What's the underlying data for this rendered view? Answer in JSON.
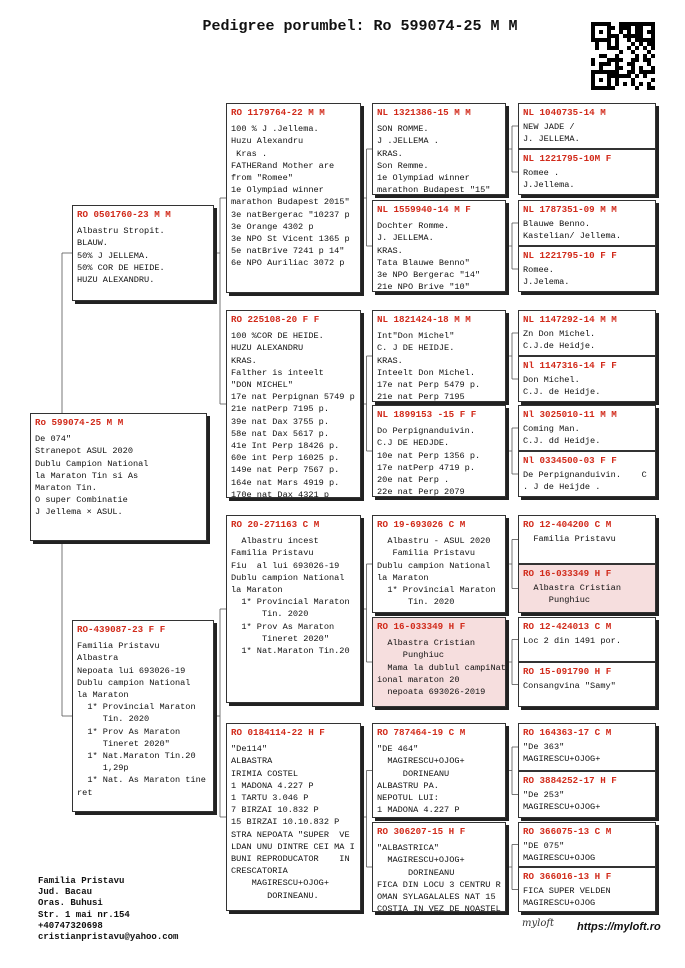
{
  "title": "Pedigree porumbel: Ro 599074-25 M M",
  "generations": [
    [
      {
        "id": "Ro 599074-25 M M",
        "lines": [
          "De 074\"",
          "Stranepot ASUL 2020",
          "Dublu Campion National",
          "la Maraton Tin si As",
          "Maraton Tin.",
          "O super Combinatie",
          "J Jellema × ASUL."
        ]
      }
    ],
    [
      {
        "id": "RO 0501760-23 M M",
        "lines": [
          "Albastru Stropit.",
          "BLAUW.",
          "50% J JELLEMA.",
          "50% COR DE HEIDE.",
          "HUZU ALEXANDRU."
        ]
      },
      {
        "id": "RO-439087-23 F F",
        "lines": [
          "Familia Pristavu",
          "Albastra",
          "Nepoata lui 693026-19",
          "Dublu campion National",
          "la Maraton",
          "  1* Provincial Maraton",
          "     Tin. 2020",
          "  1* Prov As Maraton",
          "     Tineret 2020\"",
          "  1* Nat.Maraton Tin.20",
          "     1,29p",
          "  1* Nat. As Maraton tine",
          "ret"
        ]
      }
    ],
    [
      {
        "id": "RO 1179764-22 M M",
        "lines": [
          "100 % J .Jellema.",
          "Huzu Alexandru",
          " Kras .",
          "FATHERand Mother are",
          "from \"Romee\"",
          "1e Olympiad winner",
          "marathon Budapest 2015\"",
          "3e natBergerac \"10237 p",
          "3e Orange 4302 p",
          "3e NPO St Vicent 1365 p",
          "5e natBrive 7241 p 14\"",
          "6e NPO Auriliac 3072 p"
        ]
      },
      {
        "id": "RO 225108-20 F F",
        "lines": [
          "100 %COR DE HEIDE.",
          "HUZU ALEXANDRU",
          "KRAS.",
          "Falther is inteelt",
          "\"DON MICHEL\"",
          "17e nat Perpignan 5749 p",
          "21e natPerp 7195 p.",
          "39e nat Dax 3755 p.",
          "58e nat Dax 5617 p.",
          "41e Int Perp 18426 p.",
          "60e int Perp 16025 p.",
          "149e nat Perp 7567 p.",
          "164e nat Mars 4919 p.",
          "170e nat Dax 4321 p"
        ]
      },
      {
        "id": "RO 20-271163 C M",
        "lines": [
          "  Albastru incest",
          "Familia Pristavu",
          "Fiu  al lui 693026-19",
          "Dublu campion National",
          "la Maraton",
          "  1* Provincial Maraton",
          "      Tin. 2020",
          "  1* Prov As Maraton",
          "      Tineret 2020\"",
          "  1* Nat.Maraton Tin.20"
        ]
      },
      {
        "id": "RO 0184114-22 H F",
        "lines": [
          "\"De114\"",
          "ALBASTRA",
          "IRIMIA COSTEL",
          "1 MADONA 4.227 P",
          "1 TARTU 3.046 P",
          "7 BIRZAI 10.832 P",
          "15 BIRZAI 10.10.832 P",
          "STRA NEPOATA \"SUPER  VE",
          "LDAN UNU DINTRE CEI MA I",
          "BUNI REPRODUCATOR    IN",
          "CRESCATORIA",
          "    MAGIRESCU+OJOG+",
          "       DORINEANU."
        ]
      }
    ],
    [
      {
        "id": "NL 1321386-15 M M",
        "lines": [
          "SON ROMME.",
          "J .JELLEMA .",
          "KRAS.",
          "Son Remme.",
          "1e Olympiad winner",
          "marathon Budapest \"15\""
        ]
      },
      {
        "id": "NL 1559940-14 M F",
        "lines": [
          "Dochter Romme.",
          "J. JELLEMA.",
          "KRAS.",
          "Tata Blauwe Benno\"",
          "3e NPO Bergerac \"14\"",
          "21e NPO Brive \"10\""
        ]
      },
      {
        "id": "NL 1821424-18 M M",
        "lines": [
          "Int\"Don Michel\"",
          "C. J DE HEIDJE.",
          "KRAS.",
          "Inteelt Don Michel.",
          "17e nat Perp 5479 p.",
          "21e nat Perp 7195"
        ]
      },
      {
        "id": "NL 1899153 -15 F F",
        "lines": [
          "Do Perpignanduivin.",
          "C.J DE HEDJDE.",
          "10e nat Perp 1356 p.",
          "17e natPerp 4719 p.",
          "20e nat Perp .",
          "22e nat Perp 2079"
        ]
      },
      {
        "id": "RO 19-693026 C M",
        "lines": [
          "  Albastru - ASUL 2020",
          "   Familia Pristavu",
          "Dublu campion National",
          "la Maraton",
          "  1* Provincial Maraton",
          "      Tin. 2020"
        ]
      },
      {
        "id": "RO 16-033349 H F",
        "highlight": true,
        "lines": [
          "  Albastra Cristian",
          "     Punghiuc",
          "  Mama la dublul campiNat",
          "ional maraton 20",
          "  nepoata 693026-2019"
        ]
      },
      {
        "id": "RO 787464-19 C M",
        "lines": [
          "\"DE 464\"",
          "  MAGIRESCU+OJOG+",
          "     DORINEANU",
          "ALBASTRU PA.",
          "NEPOTUL LUI:",
          "1 MADONA 4.227 P"
        ]
      },
      {
        "id": "RO 306207-15 H F",
        "lines": [
          "\"ALBASTRICA\"",
          "  MAGIRESCU+OJOG+",
          "      DORINEANU",
          "FICA DIN LOCU 3 CENTRU R",
          "OMAN SYLAGALALES NAT 15",
          "COSTIA IN VEZ DE NOASTEL"
        ]
      }
    ],
    [
      {
        "id": "NL 1040735-14 M",
        "lines": [
          "NEW JADE /",
          "J. JELLEMA."
        ]
      },
      {
        "id": "NL 1221795-10M F",
        "lines": [
          "Romee .",
          "J.Jellema."
        ]
      },
      {
        "id": "NL 1787351-09 M M",
        "lines": [
          "Blauwe Benno.",
          "Kastelian/ Jellema."
        ]
      },
      {
        "id": "NL 1221795-10 F F",
        "lines": [
          "Romee.",
          "J.Jelema."
        ]
      },
      {
        "id": "NL 1147292-14 M M",
        "lines": [
          "Zn Don Michel.",
          "C.J.de Heidje."
        ]
      },
      {
        "id": "Nl 1147316-14 F F",
        "lines": [
          "Don Michel.",
          "C.J. de Heidje."
        ]
      },
      {
        "id": "Nl 3025010-11 M M",
        "lines": [
          "Coming Man.",
          "C.J. dd Heidje."
        ]
      },
      {
        "id": "Nl 0334500-03 F F",
        "lines": [
          "De Perpignanduivin.    C",
          ". J de Heijde ."
        ]
      },
      {
        "id": "RO 12-404200 C M",
        "lines": [
          "  Familia Pristavu"
        ]
      },
      {
        "id": "RO 16-033349 H F",
        "highlight": true,
        "lines": [
          "  Albastra Cristian",
          "     Punghiuc"
        ]
      },
      {
        "id": "RO 12-424013 C M",
        "lines": [
          "Loc 2 din 1491 por."
        ]
      },
      {
        "id": "RO 15-091790 H F",
        "lines": [
          "Consangvina \"Samy\""
        ]
      },
      {
        "id": "RO 164363-17 C M",
        "lines": [
          "\"De 363\"",
          "MAGIRESCU+OJOG+"
        ]
      },
      {
        "id": "RO 3884252-17 H F",
        "lines": [
          "\"De 253\"",
          "MAGIRESCU+OJOG+"
        ]
      },
      {
        "id": "RO 366075-13 C M",
        "lines": [
          "\"DE 075\"",
          "MAGIRESCU+OJOG"
        ]
      },
      {
        "id": "RO 366016-13 H F",
        "lines": [
          "FICA SUPER VELDEN",
          "MAGIRESCU+OJOG"
        ]
      }
    ]
  ],
  "footer": [
    "Familia Pristavu",
    "Jud. Bacau",
    "Oras. Buhusi",
    "Str. 1 mai nr.154",
    "+40747320698",
    "cristianpristavu@yahoo.com"
  ],
  "logo": "myloft",
  "url": "https://myloft.ro"
}
